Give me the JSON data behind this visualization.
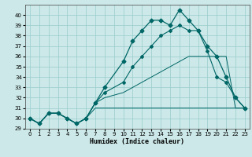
{
  "xlabel": "Humidex (Indice chaleur)",
  "bg_color": "#cce8e8",
  "grid_color": "#99cccc",
  "line_color": "#006666",
  "xlim": [
    -0.5,
    23.5
  ],
  "ylim": [
    29,
    41
  ],
  "yticks": [
    29,
    30,
    31,
    32,
    33,
    34,
    35,
    36,
    37,
    38,
    39,
    40
  ],
  "xticks": [
    0,
    1,
    2,
    3,
    4,
    5,
    6,
    7,
    8,
    9,
    10,
    11,
    12,
    13,
    14,
    15,
    16,
    17,
    18,
    19,
    20,
    21,
    22,
    23
  ],
  "series1_x": [
    0,
    1,
    2,
    3,
    4,
    5,
    6,
    7,
    8,
    10,
    11,
    12,
    13,
    14,
    15,
    16,
    17,
    18,
    19,
    20,
    21,
    22,
    23
  ],
  "series1_y": [
    30,
    29.5,
    30.5,
    30.5,
    30,
    29.5,
    30,
    31,
    31,
    31,
    31,
    31,
    31,
    31,
    31,
    31,
    31,
    31,
    31,
    31,
    31,
    31,
    31
  ],
  "series2_x": [
    0,
    1,
    2,
    3,
    4,
    5,
    6,
    7,
    8,
    10,
    11,
    12,
    13,
    14,
    15,
    16,
    17,
    18,
    19,
    20,
    21,
    22,
    23
  ],
  "series2_y": [
    30,
    29.5,
    30.5,
    30.5,
    30,
    29.5,
    30,
    31.5,
    32,
    32.5,
    33,
    33.5,
    34,
    34.5,
    35,
    35.5,
    36,
    36,
    36,
    36,
    36,
    31,
    31
  ],
  "series3_x": [
    0,
    1,
    2,
    3,
    4,
    5,
    6,
    7,
    8,
    10,
    11,
    12,
    13,
    14,
    15,
    16,
    17,
    18,
    19,
    20,
    21,
    22,
    23
  ],
  "series3_y": [
    30,
    29.5,
    30.5,
    30.5,
    30,
    29.5,
    30,
    31.5,
    32.5,
    33.5,
    35,
    36,
    37,
    38,
    38.5,
    39,
    38.5,
    38.5,
    36.5,
    34,
    33.5,
    32,
    31
  ],
  "series4_x": [
    0,
    1,
    2,
    3,
    4,
    5,
    6,
    7,
    8,
    10,
    11,
    12,
    13,
    14,
    15,
    16,
    17,
    18,
    19,
    20,
    21,
    22,
    23
  ],
  "series4_y": [
    30,
    29.5,
    30.5,
    30.5,
    30,
    29.5,
    30,
    31.5,
    33,
    35.5,
    37.5,
    38.5,
    39.5,
    39.5,
    39,
    40.5,
    39.5,
    38.5,
    37,
    36,
    34,
    32,
    31
  ]
}
